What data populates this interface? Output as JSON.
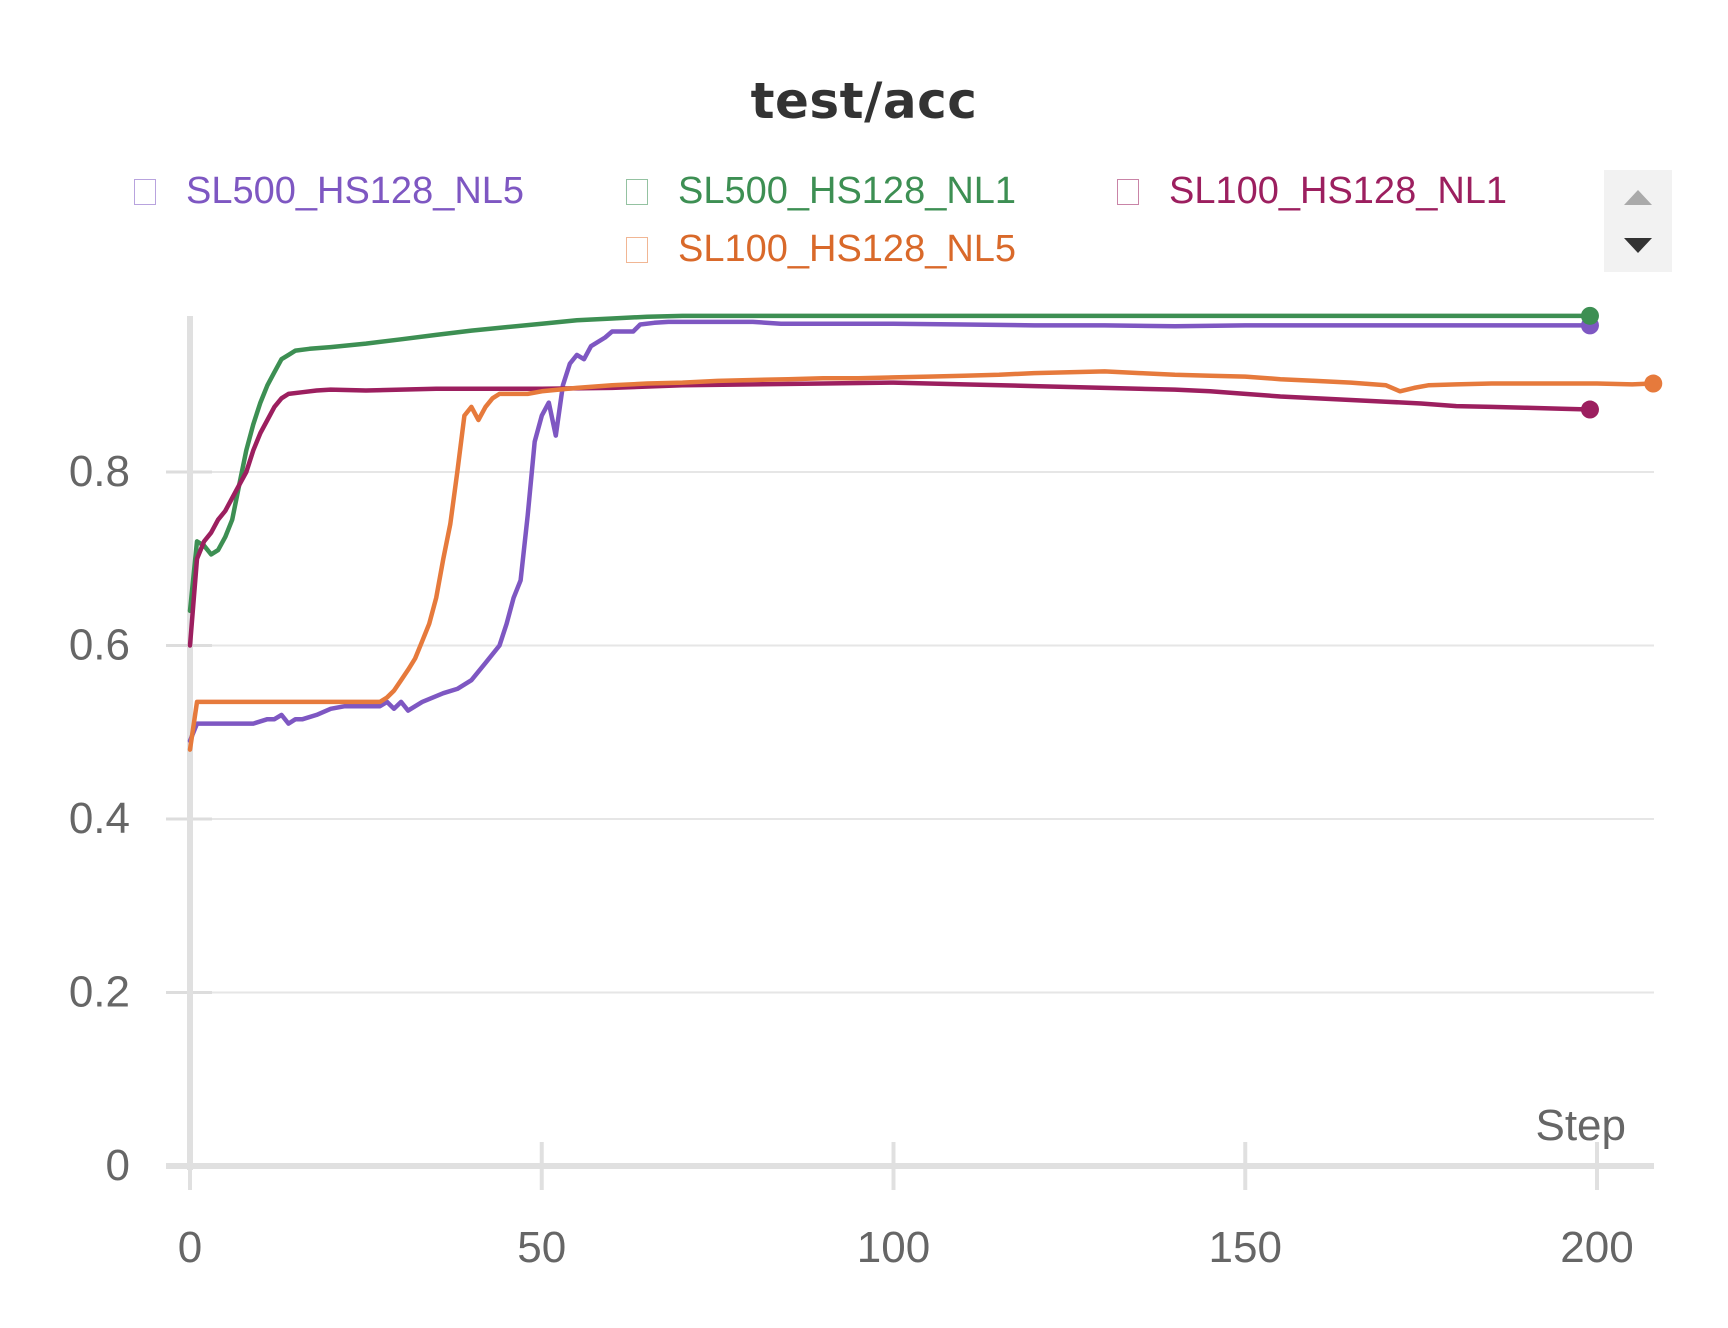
{
  "chart_data": {
    "type": "line",
    "title": "test/acc",
    "xlabel": "Step",
    "ylabel": "",
    "xlim": [
      0,
      208
    ],
    "ylim": [
      0,
      0.98
    ],
    "xticks": [
      0,
      50,
      100,
      150,
      200
    ],
    "xtick_labels": [
      "0",
      "50",
      "100",
      "150",
      "200"
    ],
    "yticks": [
      0,
      0.2,
      0.4,
      0.6,
      0.8
    ],
    "ytick_labels": [
      "0",
      "0.2",
      "0.4",
      "0.6",
      "0.8"
    ],
    "grid": true,
    "legend_position": "top",
    "series": [
      {
        "name": "SL500_HS128_NL5",
        "color": "#7e57c2",
        "points": [
          [
            0,
            0.49
          ],
          [
            1,
            0.51
          ],
          [
            3,
            0.51
          ],
          [
            5,
            0.51
          ],
          [
            9,
            0.51
          ],
          [
            11,
            0.515
          ],
          [
            12,
            0.515
          ],
          [
            13,
            0.52
          ],
          [
            14,
            0.51
          ],
          [
            15,
            0.515
          ],
          [
            16,
            0.515
          ],
          [
            18,
            0.52
          ],
          [
            20,
            0.527
          ],
          [
            22,
            0.53
          ],
          [
            25,
            0.53
          ],
          [
            27,
            0.53
          ],
          [
            28,
            0.535
          ],
          [
            29,
            0.527
          ],
          [
            30,
            0.535
          ],
          [
            31,
            0.525
          ],
          [
            33,
            0.535
          ],
          [
            36,
            0.545
          ],
          [
            38,
            0.55
          ],
          [
            40,
            0.56
          ],
          [
            42,
            0.58
          ],
          [
            44,
            0.6
          ],
          [
            45,
            0.625
          ],
          [
            46,
            0.655
          ],
          [
            47,
            0.675
          ],
          [
            48,
            0.75
          ],
          [
            49,
            0.835
          ],
          [
            50,
            0.865
          ],
          [
            51,
            0.88
          ],
          [
            52,
            0.842
          ],
          [
            53,
            0.9
          ],
          [
            54,
            0.925
          ],
          [
            55,
            0.935
          ],
          [
            56,
            0.93
          ],
          [
            57,
            0.945
          ],
          [
            59,
            0.955
          ],
          [
            60,
            0.962
          ],
          [
            62,
            0.962
          ],
          [
            63,
            0.962
          ],
          [
            64,
            0.97
          ],
          [
            66,
            0.972
          ],
          [
            68,
            0.973
          ],
          [
            72,
            0.973
          ],
          [
            76,
            0.973
          ],
          [
            80,
            0.973
          ],
          [
            84,
            0.971
          ],
          [
            90,
            0.971
          ],
          [
            100,
            0.971
          ],
          [
            110,
            0.97
          ],
          [
            120,
            0.969
          ],
          [
            130,
            0.969
          ],
          [
            140,
            0.968
          ],
          [
            150,
            0.969
          ],
          [
            160,
            0.969
          ],
          [
            170,
            0.969
          ],
          [
            180,
            0.969
          ],
          [
            190,
            0.969
          ],
          [
            199,
            0.969
          ]
        ],
        "end_marker": true
      },
      {
        "name": "SL500_HS128_NL1",
        "color": "#3d8f53",
        "points": [
          [
            0,
            0.64
          ],
          [
            1,
            0.72
          ],
          [
            2,
            0.715
          ],
          [
            3,
            0.705
          ],
          [
            4,
            0.71
          ],
          [
            5,
            0.725
          ],
          [
            6,
            0.745
          ],
          [
            7,
            0.785
          ],
          [
            8,
            0.825
          ],
          [
            9,
            0.855
          ],
          [
            10,
            0.88
          ],
          [
            11,
            0.9
          ],
          [
            12,
            0.915
          ],
          [
            13,
            0.93
          ],
          [
            14,
            0.935
          ],
          [
            15,
            0.94
          ],
          [
            17,
            0.942
          ],
          [
            20,
            0.944
          ],
          [
            25,
            0.948
          ],
          [
            30,
            0.953
          ],
          [
            35,
            0.958
          ],
          [
            40,
            0.963
          ],
          [
            45,
            0.967
          ],
          [
            50,
            0.971
          ],
          [
            55,
            0.975
          ],
          [
            60,
            0.977
          ],
          [
            65,
            0.979
          ],
          [
            70,
            0.98
          ],
          [
            80,
            0.98
          ],
          [
            100,
            0.98
          ],
          [
            120,
            0.98
          ],
          [
            140,
            0.98
          ],
          [
            160,
            0.98
          ],
          [
            180,
            0.98
          ],
          [
            199,
            0.98
          ]
        ],
        "end_marker": true
      },
      {
        "name": "SL100_HS128_NL1",
        "color": "#9c1f5f",
        "points": [
          [
            0,
            0.6
          ],
          [
            1,
            0.7
          ],
          [
            2,
            0.72
          ],
          [
            3,
            0.73
          ],
          [
            4,
            0.745
          ],
          [
            5,
            0.755
          ],
          [
            6,
            0.77
          ],
          [
            7,
            0.785
          ],
          [
            8,
            0.8
          ],
          [
            9,
            0.825
          ],
          [
            10,
            0.845
          ],
          [
            11,
            0.86
          ],
          [
            12,
            0.875
          ],
          [
            13,
            0.885
          ],
          [
            14,
            0.89
          ],
          [
            16,
            0.892
          ],
          [
            18,
            0.894
          ],
          [
            20,
            0.895
          ],
          [
            25,
            0.894
          ],
          [
            30,
            0.895
          ],
          [
            35,
            0.896
          ],
          [
            40,
            0.896
          ],
          [
            50,
            0.896
          ],
          [
            60,
            0.897
          ],
          [
            70,
            0.9
          ],
          [
            80,
            0.901
          ],
          [
            90,
            0.902
          ],
          [
            100,
            0.903
          ],
          [
            110,
            0.901
          ],
          [
            120,
            0.899
          ],
          [
            130,
            0.897
          ],
          [
            140,
            0.895
          ],
          [
            145,
            0.893
          ],
          [
            150,
            0.89
          ],
          [
            155,
            0.887
          ],
          [
            160,
            0.885
          ],
          [
            165,
            0.883
          ],
          [
            170,
            0.881
          ],
          [
            175,
            0.879
          ],
          [
            180,
            0.876
          ],
          [
            185,
            0.875
          ],
          [
            190,
            0.874
          ],
          [
            195,
            0.873
          ],
          [
            199,
            0.872
          ]
        ],
        "end_marker": true
      },
      {
        "name": "SL100_HS128_NL5",
        "color": "#e67a3c",
        "points": [
          [
            0,
            0.48
          ],
          [
            1,
            0.535
          ],
          [
            5,
            0.535
          ],
          [
            10,
            0.535
          ],
          [
            15,
            0.535
          ],
          [
            20,
            0.535
          ],
          [
            25,
            0.535
          ],
          [
            27,
            0.535
          ],
          [
            28,
            0.54
          ],
          [
            29,
            0.548
          ],
          [
            30,
            0.56
          ],
          [
            31,
            0.572
          ],
          [
            32,
            0.585
          ],
          [
            33,
            0.605
          ],
          [
            34,
            0.625
          ],
          [
            35,
            0.655
          ],
          [
            36,
            0.7
          ],
          [
            37,
            0.74
          ],
          [
            38,
            0.8
          ],
          [
            39,
            0.865
          ],
          [
            40,
            0.875
          ],
          [
            41,
            0.86
          ],
          [
            42,
            0.875
          ],
          [
            43,
            0.885
          ],
          [
            44,
            0.89
          ],
          [
            45,
            0.89
          ],
          [
            48,
            0.89
          ],
          [
            50,
            0.893
          ],
          [
            55,
            0.897
          ],
          [
            60,
            0.9
          ],
          [
            65,
            0.902
          ],
          [
            70,
            0.903
          ],
          [
            75,
            0.905
          ],
          [
            80,
            0.906
          ],
          [
            85,
            0.907
          ],
          [
            90,
            0.908
          ],
          [
            95,
            0.908
          ],
          [
            100,
            0.909
          ],
          [
            105,
            0.91
          ],
          [
            110,
            0.911
          ],
          [
            115,
            0.912
          ],
          [
            120,
            0.914
          ],
          [
            125,
            0.915
          ],
          [
            130,
            0.916
          ],
          [
            135,
            0.914
          ],
          [
            140,
            0.912
          ],
          [
            145,
            0.911
          ],
          [
            150,
            0.91
          ],
          [
            155,
            0.907
          ],
          [
            160,
            0.905
          ],
          [
            165,
            0.903
          ],
          [
            170,
            0.9
          ],
          [
            172,
            0.893
          ],
          [
            174,
            0.897
          ],
          [
            176,
            0.9
          ],
          [
            180,
            0.901
          ],
          [
            185,
            0.902
          ],
          [
            190,
            0.902
          ],
          [
            195,
            0.902
          ],
          [
            200,
            0.902
          ],
          [
            205,
            0.901
          ],
          [
            208,
            0.902
          ]
        ],
        "end_marker": true
      }
    ]
  }
}
